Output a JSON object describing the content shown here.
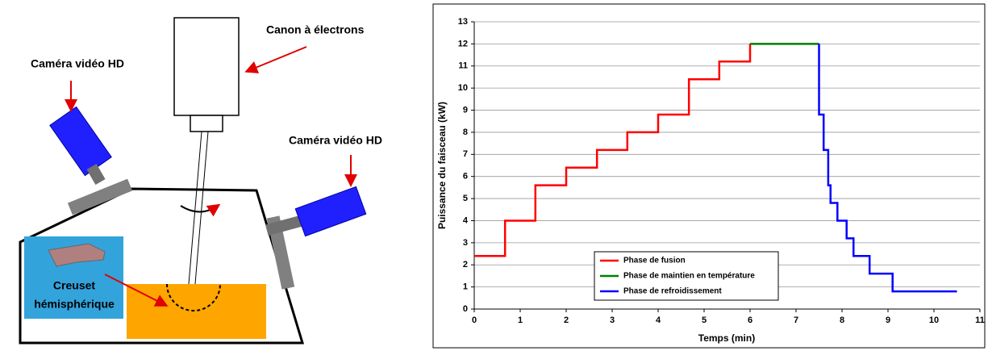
{
  "diagram": {
    "gun_label": "Canon à électrons",
    "camera_left_label": "Caméra vidéo HD",
    "camera_right_label": "Caméra vidéo HD",
    "crucible_label": [
      "Creuset",
      "hémisphérique"
    ]
  },
  "chart_data": {
    "type": "line",
    "xlabel": "Temps (min)",
    "ylabel": "Puissance du faisceau (kW)",
    "xlim": [
      0,
      11
    ],
    "xticks": [
      0,
      1,
      2,
      3,
      4,
      5,
      6,
      7,
      8,
      9,
      10,
      11
    ],
    "ylim": [
      0,
      13
    ],
    "yticks": [
      0,
      1,
      2,
      3,
      4,
      5,
      6,
      7,
      8,
      9,
      10,
      11,
      12,
      13
    ],
    "grid": true,
    "legend": "bottom-center",
    "series": [
      {
        "name": "Phase de fusion",
        "color": "#ff0000",
        "x": [
          0,
          0.67,
          0.67,
          1.33,
          1.33,
          2,
          2,
          2.67,
          2.67,
          3.33,
          3.33,
          4,
          4,
          4.67,
          4.67,
          5.33,
          5.33,
          6,
          6
        ],
        "values": [
          2.4,
          2.4,
          4,
          4,
          5.6,
          5.6,
          6.4,
          6.4,
          7.2,
          7.2,
          8,
          8,
          8.8,
          8.8,
          10.4,
          10.4,
          11.2,
          11.2,
          12
        ]
      },
      {
        "name": "Phase de maintien en température",
        "color": "#008000",
        "x": [
          6,
          7.5
        ],
        "values": [
          12,
          12
        ]
      },
      {
        "name": "Phase de refroidissement",
        "color": "#0000ff",
        "x": [
          7.5,
          7.5,
          7.6,
          7.6,
          7.7,
          7.7,
          7.75,
          7.75,
          7.9,
          7.9,
          8.1,
          8.1,
          8.25,
          8.25,
          8.6,
          8.6,
          9.1,
          9.1,
          10.5
        ],
        "values": [
          12,
          8.8,
          8.8,
          7.2,
          7.2,
          5.6,
          5.6,
          4.8,
          4.8,
          4,
          4,
          3.2,
          3.2,
          2.4,
          2.4,
          1.6,
          1.6,
          0.8,
          0.8
        ]
      }
    ]
  }
}
